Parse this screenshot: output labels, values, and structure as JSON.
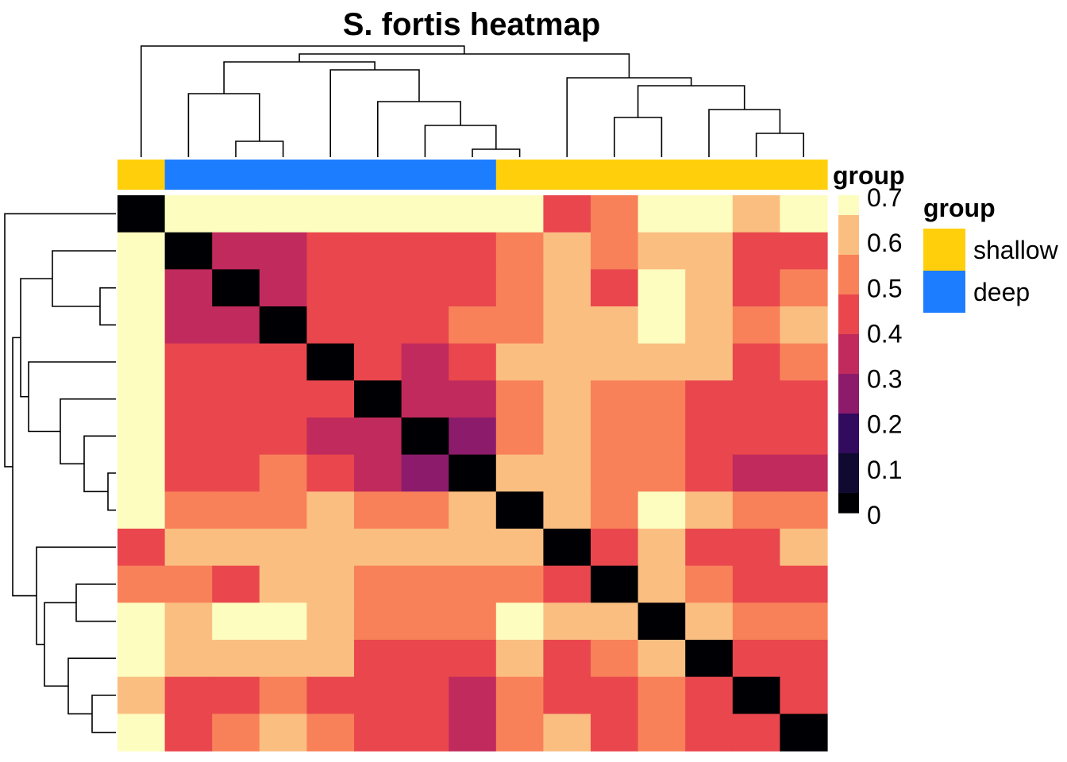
{
  "chart_data": {
    "type": "heatmap",
    "title": "S. fortis heatmap",
    "samples": 15,
    "value_range": [
      0,
      0.7
    ],
    "matrix": [
      [
        0.0,
        0.7,
        0.7,
        0.7,
        0.7,
        0.7,
        0.7,
        0.7,
        0.7,
        0.45,
        0.55,
        0.7,
        0.7,
        0.6,
        0.7
      ],
      [
        0.7,
        0.0,
        0.3,
        0.3,
        0.4,
        0.4,
        0.4,
        0.45,
        0.55,
        0.6,
        0.55,
        0.6,
        0.6,
        0.45,
        0.45
      ],
      [
        0.7,
        0.3,
        0.0,
        0.3,
        0.45,
        0.4,
        0.4,
        0.45,
        0.55,
        0.6,
        0.45,
        0.7,
        0.6,
        0.45,
        0.55
      ],
      [
        0.7,
        0.3,
        0.3,
        0.0,
        0.4,
        0.45,
        0.45,
        0.55,
        0.55,
        0.6,
        0.6,
        0.7,
        0.6,
        0.55,
        0.6
      ],
      [
        0.7,
        0.4,
        0.45,
        0.4,
        0.0,
        0.4,
        0.3,
        0.4,
        0.6,
        0.6,
        0.6,
        0.6,
        0.6,
        0.45,
        0.55
      ],
      [
        0.7,
        0.4,
        0.4,
        0.45,
        0.4,
        0.0,
        0.3,
        0.3,
        0.55,
        0.6,
        0.55,
        0.55,
        0.45,
        0.4,
        0.45
      ],
      [
        0.7,
        0.4,
        0.4,
        0.45,
        0.3,
        0.3,
        0.0,
        0.22,
        0.55,
        0.6,
        0.55,
        0.55,
        0.45,
        0.4,
        0.4
      ],
      [
        0.7,
        0.45,
        0.45,
        0.55,
        0.4,
        0.3,
        0.22,
        0.0,
        0.6,
        0.6,
        0.55,
        0.55,
        0.4,
        0.3,
        0.3
      ],
      [
        0.7,
        0.55,
        0.55,
        0.55,
        0.6,
        0.55,
        0.55,
        0.6,
        0.0,
        0.6,
        0.55,
        0.7,
        0.6,
        0.55,
        0.55
      ],
      [
        0.45,
        0.6,
        0.6,
        0.6,
        0.6,
        0.6,
        0.6,
        0.6,
        0.6,
        0.0,
        0.45,
        0.6,
        0.45,
        0.45,
        0.6
      ],
      [
        0.55,
        0.55,
        0.45,
        0.6,
        0.6,
        0.55,
        0.55,
        0.55,
        0.55,
        0.45,
        0.0,
        0.6,
        0.55,
        0.4,
        0.45
      ],
      [
        0.7,
        0.6,
        0.7,
        0.7,
        0.6,
        0.55,
        0.55,
        0.55,
        0.7,
        0.6,
        0.6,
        0.0,
        0.6,
        0.55,
        0.55
      ],
      [
        0.7,
        0.6,
        0.6,
        0.6,
        0.6,
        0.45,
        0.45,
        0.4,
        0.6,
        0.45,
        0.55,
        0.6,
        0.0,
        0.4,
        0.4
      ],
      [
        0.6,
        0.45,
        0.45,
        0.55,
        0.45,
        0.4,
        0.4,
        0.3,
        0.55,
        0.45,
        0.4,
        0.55,
        0.4,
        0.0,
        0.4
      ],
      [
        0.7,
        0.45,
        0.55,
        0.6,
        0.55,
        0.45,
        0.4,
        0.3,
        0.55,
        0.6,
        0.45,
        0.55,
        0.4,
        0.4,
        0.0
      ]
    ],
    "column_groups": [
      "shallow",
      "deep",
      "deep",
      "deep",
      "deep",
      "deep",
      "deep",
      "deep",
      "shallow",
      "shallow",
      "shallow",
      "shallow",
      "shallow",
      "shallow",
      "shallow"
    ],
    "group_annotation_label": "group",
    "color_scale": {
      "ticks": [
        "0.7",
        "0.6",
        "0.5",
        "0.4",
        "0.3",
        "0.2",
        "0.1",
        "0"
      ],
      "breaks": [
        0.0,
        0.1,
        0.2,
        0.3,
        0.4,
        0.5,
        0.6,
        0.7
      ],
      "colors": [
        "#000004",
        "#110a30",
        "#320a5e",
        "#8c1c6b",
        "#c12a5c",
        "#e9474d",
        "#f8815a",
        "#fbbe81",
        "#fcfdbf"
      ]
    },
    "legend": {
      "title": "group",
      "entries": [
        {
          "label": "shallow",
          "color": "#ffcf0c"
        },
        {
          "label": "deep",
          "color": "#1d7dff"
        }
      ]
    },
    "dendrogram": "hierarchical",
    "dendrogram_merges": [
      [
        7,
        8
      ],
      [
        2,
        3
      ],
      [
        13,
        14
      ],
      [
        6,
        7
      ],
      [
        10,
        11
      ],
      [
        12,
        13
      ],
      [
        5,
        6
      ],
      [
        1,
        2
      ],
      [
        11,
        12
      ],
      [
        9,
        10
      ],
      [
        4,
        5
      ],
      [
        1,
        4
      ],
      [
        8,
        9
      ],
      [
        0,
        1
      ]
    ]
  }
}
